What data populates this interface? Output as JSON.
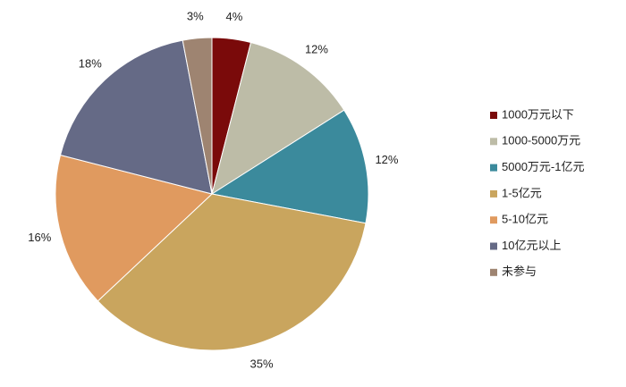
{
  "chart_data": {
    "type": "pie",
    "categories": [
      "1000万元以下",
      "1000-5000万元",
      "5000万元-1亿元",
      "1-5亿元",
      "5-10亿元",
      "10亿元以上",
      "未参与"
    ],
    "values": [
      4,
      12,
      12,
      35,
      16,
      18,
      3
    ],
    "value_labels": [
      "4%",
      "12%",
      "12%",
      "35%",
      "16%",
      "18%",
      "3%"
    ],
    "colors": [
      "#7a0a0a",
      "#bdbca7",
      "#3b8a9c",
      "#c9a55e",
      "#e09a5f",
      "#656a86",
      "#9e8471"
    ],
    "legend": "right"
  }
}
